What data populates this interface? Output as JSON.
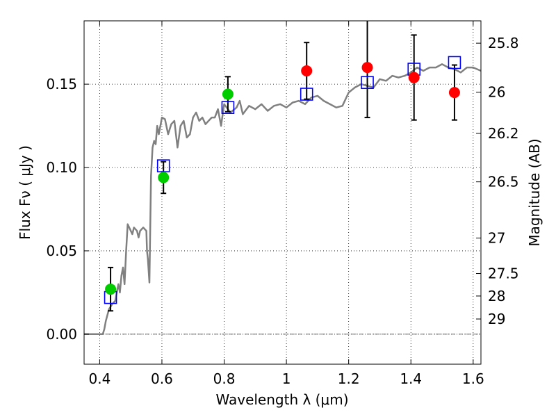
{
  "chart_data": {
    "type": "scatter",
    "title": "",
    "xlabel": "Wavelength  λ (μm)",
    "ylabel": "Flux  Fν  ( μJy )",
    "y2label": "Magnitude (AB)",
    "xlim": [
      0.35,
      1.625
    ],
    "ylim": [
      -0.018,
      0.188
    ],
    "grid": true,
    "x_ticks": [
      0.4,
      0.6,
      0.8,
      1.0,
      1.2,
      1.4,
      1.6
    ],
    "x_tick_labels": [
      "0.4",
      "0.6",
      "0.8",
      "1",
      "1.2",
      "1.4",
      "1.6"
    ],
    "y_ticks": [
      0.0,
      0.05,
      0.1,
      0.15
    ],
    "y_tick_labels": [
      "0.00",
      "0.05",
      "0.10",
      "0.15"
    ],
    "right_axis_ticks": [
      {
        "label": "25.8",
        "flux": 0.1746
      },
      {
        "label": "26",
        "flux": 0.1452
      },
      {
        "label": "26.2",
        "flux": 0.1205
      },
      {
        "label": "26.5",
        "flux": 0.0914
      },
      {
        "label": "27",
        "flux": 0.0577
      },
      {
        "label": "27.5",
        "flux": 0.0364
      },
      {
        "label": "28",
        "flux": 0.0229
      },
      {
        "label": "29",
        "flux": 0.0091
      }
    ],
    "series": [
      {
        "kind": "spectrum",
        "color": "#808080",
        "x": [
          0.35,
          0.41,
          0.415,
          0.42,
          0.43,
          0.44,
          0.45,
          0.46,
          0.465,
          0.47,
          0.475,
          0.48,
          0.485,
          0.49,
          0.5,
          0.505,
          0.51,
          0.52,
          0.525,
          0.53,
          0.54,
          0.55,
          0.552,
          0.555,
          0.56,
          0.565,
          0.57,
          0.575,
          0.58,
          0.585,
          0.59,
          0.6,
          0.61,
          0.62,
          0.63,
          0.64,
          0.65,
          0.66,
          0.67,
          0.68,
          0.69,
          0.7,
          0.71,
          0.72,
          0.73,
          0.74,
          0.75,
          0.76,
          0.77,
          0.78,
          0.79,
          0.8,
          0.82,
          0.84,
          0.85,
          0.86,
          0.88,
          0.9,
          0.92,
          0.94,
          0.96,
          0.98,
          1.0,
          1.02,
          1.04,
          1.06,
          1.08,
          1.1,
          1.12,
          1.14,
          1.16,
          1.18,
          1.2,
          1.22,
          1.24,
          1.26,
          1.28,
          1.3,
          1.32,
          1.34,
          1.36,
          1.38,
          1.4,
          1.42,
          1.44,
          1.46,
          1.48,
          1.5,
          1.52,
          1.54,
          1.56,
          1.58,
          1.6,
          1.625
        ],
        "y": [
          0.0,
          0.0,
          0.003,
          0.008,
          0.015,
          0.018,
          0.02,
          0.03,
          0.025,
          0.035,
          0.04,
          0.03,
          0.05,
          0.066,
          0.062,
          0.06,
          0.064,
          0.062,
          0.058,
          0.062,
          0.064,
          0.062,
          0.05,
          0.045,
          0.031,
          0.095,
          0.112,
          0.116,
          0.114,
          0.125,
          0.12,
          0.13,
          0.129,
          0.12,
          0.126,
          0.128,
          0.112,
          0.125,
          0.128,
          0.118,
          0.12,
          0.13,
          0.133,
          0.128,
          0.13,
          0.126,
          0.128,
          0.13,
          0.13,
          0.135,
          0.125,
          0.138,
          0.133,
          0.136,
          0.14,
          0.132,
          0.137,
          0.135,
          0.138,
          0.134,
          0.137,
          0.138,
          0.136,
          0.139,
          0.14,
          0.138,
          0.142,
          0.143,
          0.14,
          0.138,
          0.136,
          0.137,
          0.145,
          0.148,
          0.15,
          0.149,
          0.148,
          0.153,
          0.152,
          0.155,
          0.154,
          0.155,
          0.157,
          0.16,
          0.158,
          0.16,
          0.16,
          0.162,
          0.16,
          0.159,
          0.157,
          0.16,
          0.16,
          0.158
        ]
      },
      {
        "kind": "model-squares",
        "color": "#0000ff",
        "x": [
          0.435,
          0.605,
          0.812,
          1.065,
          1.26,
          1.41,
          1.54
        ],
        "y": [
          0.022,
          0.101,
          0.136,
          0.144,
          0.151,
          0.159,
          0.163
        ]
      },
      {
        "kind": "observed-circles-optical",
        "color": "#00cc00",
        "x": [
          0.435,
          0.605,
          0.812
        ],
        "y": [
          0.027,
          0.094,
          0.144
        ],
        "yerr": [
          0.013,
          0.0095,
          0.0105
        ]
      },
      {
        "kind": "observed-circles-nir",
        "color": "#ff0000",
        "x": [
          1.065,
          1.26,
          1.41,
          1.54
        ],
        "y": [
          0.158,
          0.16,
          0.154,
          0.145
        ],
        "yerr": [
          0.017,
          0.03,
          0.0255,
          0.0165
        ]
      }
    ]
  }
}
